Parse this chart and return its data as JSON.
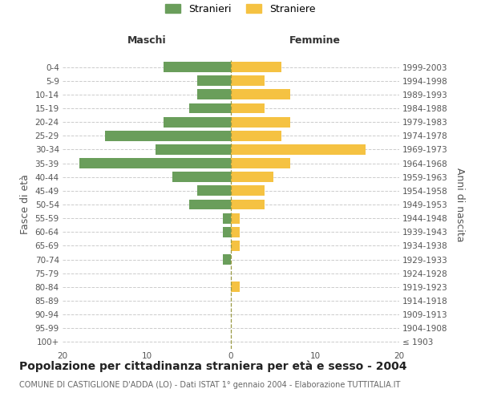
{
  "age_groups": [
    "100+",
    "95-99",
    "90-94",
    "85-89",
    "80-84",
    "75-79",
    "70-74",
    "65-69",
    "60-64",
    "55-59",
    "50-54",
    "45-49",
    "40-44",
    "35-39",
    "30-34",
    "25-29",
    "20-24",
    "15-19",
    "10-14",
    "5-9",
    "0-4"
  ],
  "birth_years": [
    "≤ 1903",
    "1904-1908",
    "1909-1913",
    "1914-1918",
    "1919-1923",
    "1924-1928",
    "1929-1933",
    "1934-1938",
    "1939-1943",
    "1944-1948",
    "1949-1953",
    "1954-1958",
    "1959-1963",
    "1964-1968",
    "1969-1973",
    "1974-1978",
    "1979-1983",
    "1984-1988",
    "1989-1993",
    "1994-1998",
    "1999-2003"
  ],
  "males": [
    0,
    0,
    0,
    0,
    0,
    0,
    1,
    0,
    1,
    1,
    5,
    4,
    7,
    18,
    9,
    15,
    8,
    5,
    4,
    4,
    8
  ],
  "females": [
    0,
    0,
    0,
    0,
    1,
    0,
    0,
    1,
    1,
    1,
    4,
    4,
    5,
    7,
    16,
    6,
    7,
    4,
    7,
    4,
    6
  ],
  "male_color": "#6a9e5b",
  "female_color": "#f5c242",
  "background_color": "#ffffff",
  "grid_color": "#cccccc",
  "title": "Popolazione per cittadinanza straniera per età e sesso - 2004",
  "subtitle": "COMUNE DI CASTIGLIONE D'ADDA (LO) - Dati ISTAT 1° gennaio 2004 - Elaborazione TUTTITALIA.IT",
  "xlabel_left": "Maschi",
  "xlabel_right": "Femmine",
  "ylabel_left": "Fasce di età",
  "ylabel_right": "Anni di nascita",
  "legend_male": "Stranieri",
  "legend_female": "Straniere",
  "xlim": 20,
  "title_fontsize": 10,
  "subtitle_fontsize": 7,
  "label_fontsize": 9,
  "tick_fontsize": 7.5,
  "legend_fontsize": 9
}
